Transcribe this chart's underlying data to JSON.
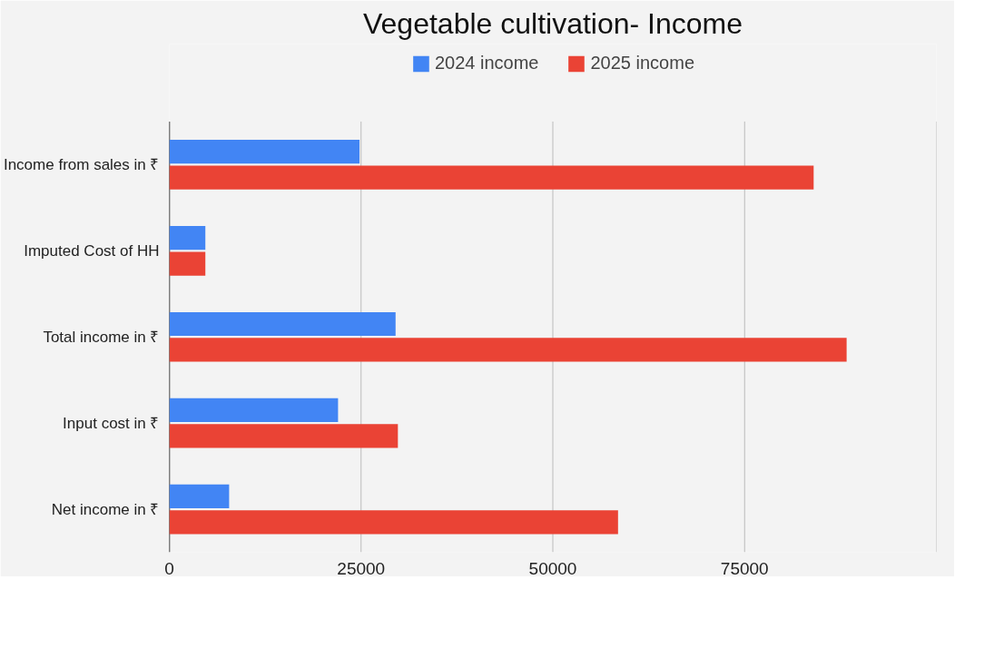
{
  "chart_data": {
    "type": "bar",
    "orientation": "horizontal",
    "title": "Vegetable cultivation- Income",
    "categories": [
      "Income from sales in ₹",
      "Imputed Cost of HH",
      "Total income in ₹",
      "Input cost in ₹",
      "Net income in ₹"
    ],
    "series": [
      {
        "name": "2024 income",
        "color": "#4285f4",
        "values": [
          24800,
          4700,
          29500,
          22000,
          7800
        ]
      },
      {
        "name": "2025 income",
        "color": "#ea4335",
        "values": [
          84000,
          4700,
          88300,
          29800,
          58500
        ]
      }
    ],
    "xlim": [
      0,
      100000
    ],
    "xticks": [
      0,
      25000,
      50000,
      75000,
      {
        "value": 100000,
        "label": null
      }
    ],
    "grid": "x",
    "legend": "top"
  }
}
